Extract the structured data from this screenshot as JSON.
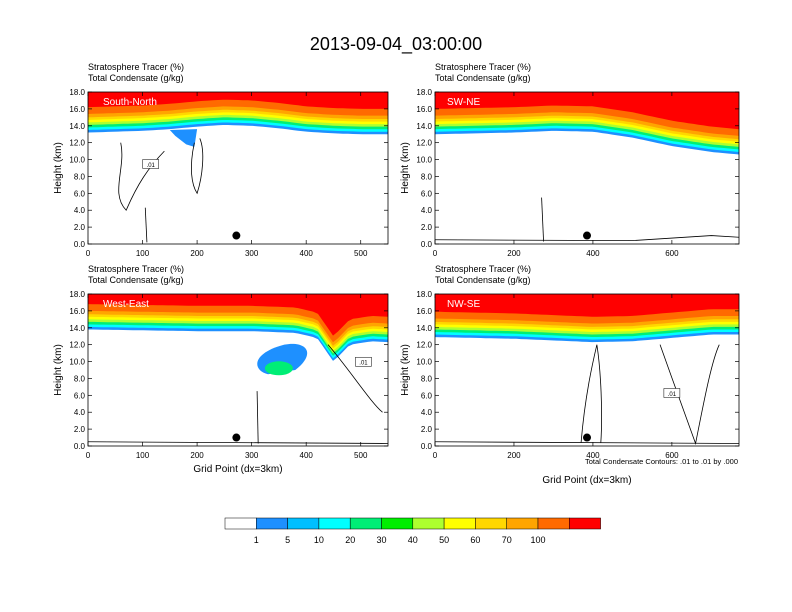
{
  "figure": {
    "title": "2013-09-04_03:00:00",
    "footnote": "Total Condensate Contours: .01 to .01 by .000"
  },
  "colorbar": {
    "labels": [
      "1",
      "5",
      "10",
      "20",
      "30",
      "40",
      "50",
      "60",
      "70",
      "100"
    ],
    "colors": [
      "#ffffff",
      "#1e90ff",
      "#00bfff",
      "#00ffff",
      "#00ee76",
      "#00ee00",
      "#adff2f",
      "#ffff00",
      "#ffd700",
      "#ffa500",
      "#ff6a00",
      "#ff0000"
    ]
  },
  "chart_data": [
    {
      "type": "heatmap",
      "panel": "South-North",
      "header_line1": "Stratosphere Tracer   (%)",
      "header_line2": "Total Condensate   (g/kg)",
      "ylabel": "Height (km)",
      "xlabel": "",
      "xlim": [
        0,
        550
      ],
      "ylim": [
        0,
        18
      ],
      "xticks": [
        "0",
        "100",
        "200",
        "300",
        "400",
        "500"
      ],
      "yticks": [
        "0.0",
        "2.0",
        "4.0",
        "6.0",
        "8.0",
        "10.0",
        "12.0",
        "14.0",
        "16.0",
        "18.0"
      ],
      "tracer_base_km": [
        [
          0,
          13.2
        ],
        [
          50,
          13.3
        ],
        [
          100,
          13.4
        ],
        [
          150,
          13.6
        ],
        [
          200,
          13.9
        ],
        [
          250,
          14.1
        ],
        [
          300,
          14.0
        ],
        [
          350,
          13.7
        ],
        [
          400,
          13.3
        ],
        [
          450,
          13.1
        ],
        [
          500,
          13.0
        ],
        [
          550,
          13.0
        ]
      ],
      "contour_label": ".01",
      "marker": {
        "x": 272,
        "y": 1.0
      }
    },
    {
      "type": "heatmap",
      "panel": "SW-NE",
      "header_line1": "Stratosphere Tracer   (%)",
      "header_line2": "Total Condensate   (g/kg)",
      "ylabel": "Height (km)",
      "xlabel": "",
      "xlim": [
        0,
        770
      ],
      "ylim": [
        0,
        18
      ],
      "xticks": [
        "0",
        "200",
        "400",
        "600"
      ],
      "yticks": [
        "0.0",
        "2.0",
        "4.0",
        "6.0",
        "8.0",
        "10.0",
        "12.0",
        "14.0",
        "16.0",
        "18.0"
      ],
      "tracer_base_km": [
        [
          0,
          13.0
        ],
        [
          100,
          13.1
        ],
        [
          200,
          13.2
        ],
        [
          300,
          13.4
        ],
        [
          400,
          13.3
        ],
        [
          500,
          12.6
        ],
        [
          600,
          11.6
        ],
        [
          700,
          10.9
        ],
        [
          770,
          10.6
        ]
      ],
      "contour_label": "",
      "marker": {
        "x": 385,
        "y": 1.0
      }
    },
    {
      "type": "heatmap",
      "panel": "West-East",
      "header_line1": "Stratosphere Tracer   (%)",
      "header_line2": "Total Condensate   (g/kg)",
      "ylabel": "Height (km)",
      "xlabel": "Grid Point (dx=3km)",
      "xlim": [
        0,
        550
      ],
      "ylim": [
        0,
        18
      ],
      "xticks": [
        "0",
        "100",
        "200",
        "300",
        "400",
        "500"
      ],
      "yticks": [
        "0.0",
        "2.0",
        "4.0",
        "6.0",
        "8.0",
        "10.0",
        "12.0",
        "14.0",
        "16.0",
        "18.0"
      ],
      "tracer_base_km": [
        [
          0,
          13.8
        ],
        [
          100,
          13.7
        ],
        [
          200,
          13.6
        ],
        [
          300,
          13.6
        ],
        [
          380,
          13.4
        ],
        [
          420,
          12.8
        ],
        [
          450,
          10.0
        ],
        [
          480,
          12.0
        ],
        [
          520,
          12.4
        ],
        [
          550,
          12.3
        ]
      ],
      "contour_label": ".01",
      "marker": {
        "x": 272,
        "y": 1.0
      }
    },
    {
      "type": "heatmap",
      "panel": "NW-SE",
      "header_line1": "Stratosphere Tracer   (%)",
      "header_line2": "Total Condensate   (g/kg)",
      "ylabel": "Height (km)",
      "xlabel": "Grid Point (dx=3km)",
      "xlim": [
        0,
        770
      ],
      "ylim": [
        0,
        18
      ],
      "xticks": [
        "0",
        "200",
        "400",
        "600"
      ],
      "yticks": [
        "0.0",
        "2.0",
        "4.0",
        "6.0",
        "8.0",
        "10.0",
        "12.0",
        "14.0",
        "16.0",
        "18.0"
      ],
      "tracer_base_km": [
        [
          0,
          12.9
        ],
        [
          100,
          12.8
        ],
        [
          200,
          12.7
        ],
        [
          300,
          12.5
        ],
        [
          400,
          12.3
        ],
        [
          500,
          12.4
        ],
        [
          600,
          12.8
        ],
        [
          700,
          13.2
        ],
        [
          770,
          13.2
        ]
      ],
      "contour_label": ".01",
      "marker": {
        "x": 385,
        "y": 1.0
      }
    }
  ]
}
